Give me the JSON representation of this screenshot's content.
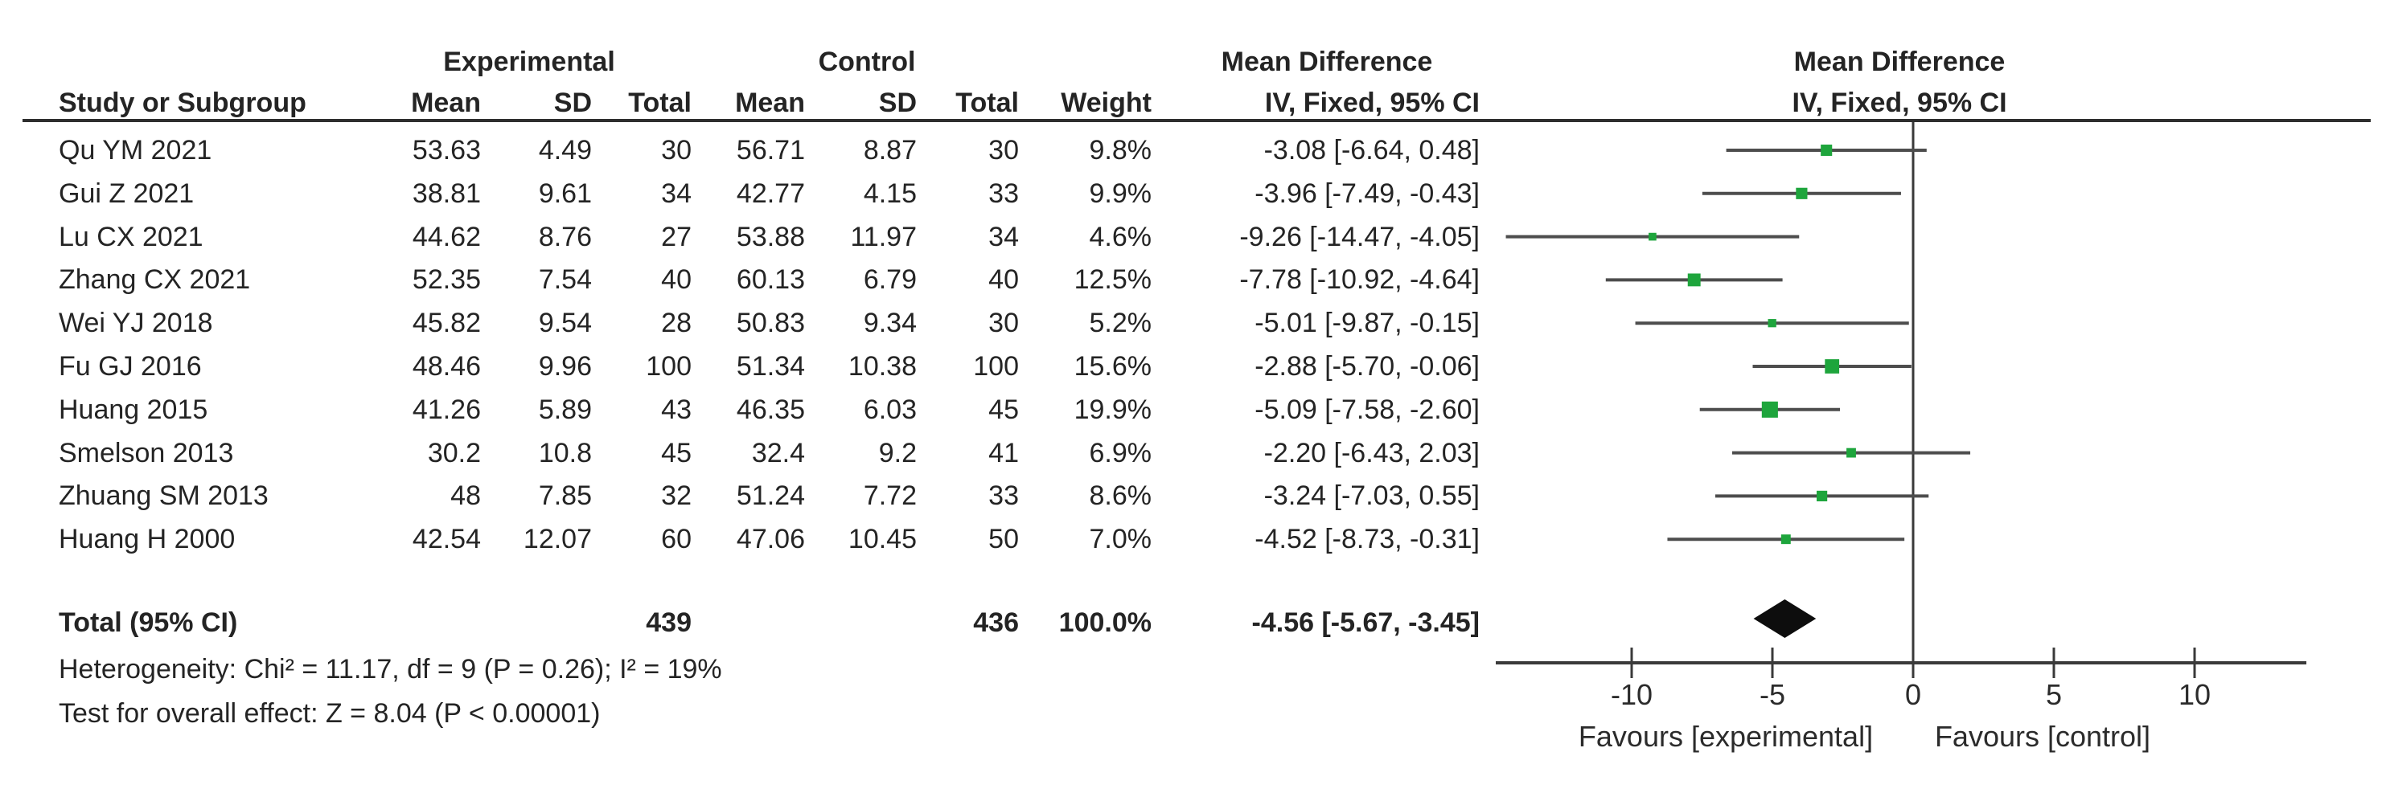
{
  "figure_title": "Forest plot — Mean Difference, IV Fixed effect, 95% CI",
  "colors": {
    "marker_green": "#1ea53c",
    "ci_line": "#4d4d4d",
    "axis_line": "#3a3a3a",
    "diamond_black": "#0d0d0d",
    "text": "#242424",
    "header_rule": "#2e2e2e"
  },
  "table": {
    "group_headers": {
      "experimental": "Experimental",
      "control": "Control",
      "md_text": "Mean Difference",
      "md_plot": "Mean Difference"
    },
    "column_headers": {
      "study": "Study or Subgroup",
      "exp_mean": "Mean",
      "exp_sd": "SD",
      "exp_total": "Total",
      "ctrl_mean": "Mean",
      "ctrl_sd": "SD",
      "ctrl_total": "Total",
      "weight": "Weight",
      "ci_text": "IV, Fixed, 95% CI",
      "ci_plot": "IV, Fixed, 95% CI"
    },
    "rows": [
      {
        "study": "Qu YM 2021",
        "exp_mean": "53.63",
        "exp_sd": "4.49",
        "exp_total": "30",
        "ctrl_mean": "56.71",
        "ctrl_sd": "8.87",
        "ctrl_total": "30",
        "weight": "9.8%",
        "ci_text": "-3.08 [-6.64, 0.48]",
        "est": -3.08,
        "lo": -6.64,
        "hi": 0.48,
        "weight_pct": 9.8
      },
      {
        "study": "Gui Z 2021",
        "exp_mean": "38.81",
        "exp_sd": "9.61",
        "exp_total": "34",
        "ctrl_mean": "42.77",
        "ctrl_sd": "4.15",
        "ctrl_total": "33",
        "weight": "9.9%",
        "ci_text": "-3.96 [-7.49, -0.43]",
        "est": -3.96,
        "lo": -7.49,
        "hi": -0.43,
        "weight_pct": 9.9
      },
      {
        "study": "Lu CX 2021",
        "exp_mean": "44.62",
        "exp_sd": "8.76",
        "exp_total": "27",
        "ctrl_mean": "53.88",
        "ctrl_sd": "11.97",
        "ctrl_total": "34",
        "weight": "4.6%",
        "ci_text": "-9.26 [-14.47, -4.05]",
        "est": -9.26,
        "lo": -14.47,
        "hi": -4.05,
        "weight_pct": 4.6
      },
      {
        "study": "Zhang CX 2021",
        "exp_mean": "52.35",
        "exp_sd": "7.54",
        "exp_total": "40",
        "ctrl_mean": "60.13",
        "ctrl_sd": "6.79",
        "ctrl_total": "40",
        "weight": "12.5%",
        "ci_text": "-7.78 [-10.92, -4.64]",
        "est": -7.78,
        "lo": -10.92,
        "hi": -4.64,
        "weight_pct": 12.5
      },
      {
        "study": "Wei YJ 2018",
        "exp_mean": "45.82",
        "exp_sd": "9.54",
        "exp_total": "28",
        "ctrl_mean": "50.83",
        "ctrl_sd": "9.34",
        "ctrl_total": "30",
        "weight": "5.2%",
        "ci_text": "-5.01 [-9.87, -0.15]",
        "est": -5.01,
        "lo": -9.87,
        "hi": -0.15,
        "weight_pct": 5.2
      },
      {
        "study": "Fu GJ 2016",
        "exp_mean": "48.46",
        "exp_sd": "9.96",
        "exp_total": "100",
        "ctrl_mean": "51.34",
        "ctrl_sd": "10.38",
        "ctrl_total": "100",
        "weight": "15.6%",
        "ci_text": "-2.88 [-5.70, -0.06]",
        "est": -2.88,
        "lo": -5.7,
        "hi": -0.06,
        "weight_pct": 15.6
      },
      {
        "study": "Huang 2015",
        "exp_mean": "41.26",
        "exp_sd": "5.89",
        "exp_total": "43",
        "ctrl_mean": "46.35",
        "ctrl_sd": "6.03",
        "ctrl_total": "45",
        "weight": "19.9%",
        "ci_text": "-5.09 [-7.58, -2.60]",
        "est": -5.09,
        "lo": -7.58,
        "hi": -2.6,
        "weight_pct": 19.9
      },
      {
        "study": "Smelson 2013",
        "exp_mean": "30.2",
        "exp_sd": "10.8",
        "exp_total": "45",
        "ctrl_mean": "32.4",
        "ctrl_sd": "9.2",
        "ctrl_total": "41",
        "weight": "6.9%",
        "ci_text": "-2.20 [-6.43, 2.03]",
        "est": -2.2,
        "lo": -6.43,
        "hi": 2.03,
        "weight_pct": 6.9
      },
      {
        "study": "Zhuang SM 2013",
        "exp_mean": "48",
        "exp_sd": "7.85",
        "exp_total": "32",
        "ctrl_mean": "51.24",
        "ctrl_sd": "7.72",
        "ctrl_total": "33",
        "weight": "8.6%",
        "ci_text": "-3.24 [-7.03, 0.55]",
        "est": -3.24,
        "lo": -7.03,
        "hi": 0.55,
        "weight_pct": 8.6
      },
      {
        "study": "Huang H 2000",
        "exp_mean": "42.54",
        "exp_sd": "12.07",
        "exp_total": "60",
        "ctrl_mean": "47.06",
        "ctrl_sd": "10.45",
        "ctrl_total": "50",
        "weight": "7.0%",
        "ci_text": "-4.52 [-8.73, -0.31]",
        "est": -4.52,
        "lo": -8.73,
        "hi": -0.31,
        "weight_pct": 7.0
      }
    ],
    "total_row": {
      "label": "Total (95% CI)",
      "exp_total": "439",
      "ctrl_total": "436",
      "weight": "100.0%",
      "ci_text": "-4.56 [-5.67, -3.45]",
      "est": -4.56,
      "lo": -5.67,
      "hi": -3.45
    },
    "footnotes": {
      "heterogeneity": "Heterogeneity: Chi² = 11.17, df = 9 (P = 0.26); I² = 19%",
      "overall_effect": "Test for overall effect: Z = 8.04 (P < 0.00001)"
    }
  },
  "axis": {
    "ticks": [
      "-10",
      "-5",
      "0",
      "5",
      "10"
    ],
    "tick_values": [
      -10,
      -5,
      0,
      5,
      10
    ],
    "favours_left": "Favours [experimental]",
    "favours_right": "Favours [control]"
  },
  "chart_data": {
    "type": "scatter",
    "subtype": "forest-plot (meta-analysis, mean difference, fixed effect)",
    "title": "Mean Difference IV, Fixed, 95% CI",
    "xlabel": "Favours [experimental] / Favours [control]",
    "x_ticks": [
      -10,
      -5,
      0,
      5,
      10
    ],
    "xlim": [
      -14.8,
      14.0
    ],
    "grid": false,
    "legend_position": "none",
    "categories": [
      "Qu YM 2021",
      "Gui Z 2021",
      "Lu CX 2021",
      "Zhang CX 2021",
      "Wei YJ 2018",
      "Fu GJ 2016",
      "Huang 2015",
      "Smelson 2013",
      "Zhuang SM 2013",
      "Huang H 2000"
    ],
    "series": [
      {
        "name": "Mean difference",
        "values": [
          -3.08,
          -3.96,
          -9.26,
          -7.78,
          -5.01,
          -2.88,
          -5.09,
          -2.2,
          -3.24,
          -4.52
        ]
      },
      {
        "name": "CI lower",
        "values": [
          -6.64,
          -7.49,
          -14.47,
          -10.92,
          -9.87,
          -5.7,
          -7.58,
          -6.43,
          -7.03,
          -8.73
        ]
      },
      {
        "name": "CI upper",
        "values": [
          0.48,
          -0.43,
          -4.05,
          -4.64,
          -0.15,
          -0.06,
          -2.6,
          2.03,
          0.55,
          -0.31
        ]
      },
      {
        "name": "Weight %",
        "values": [
          9.8,
          9.9,
          4.6,
          12.5,
          5.2,
          15.6,
          19.9,
          6.9,
          8.6,
          7.0
        ]
      }
    ],
    "pooled": {
      "label": "Total (95% CI)",
      "estimate": -4.56,
      "ci_lower": -5.67,
      "ci_upper": -3.45,
      "exp_n": 439,
      "ctrl_n": 436,
      "weight": "100.0%"
    },
    "heterogeneity": "Chi² = 11.17, df = 9 (P = 0.26); I² = 19%",
    "overall_effect_test": "Z = 8.04 (P < 0.00001)"
  }
}
